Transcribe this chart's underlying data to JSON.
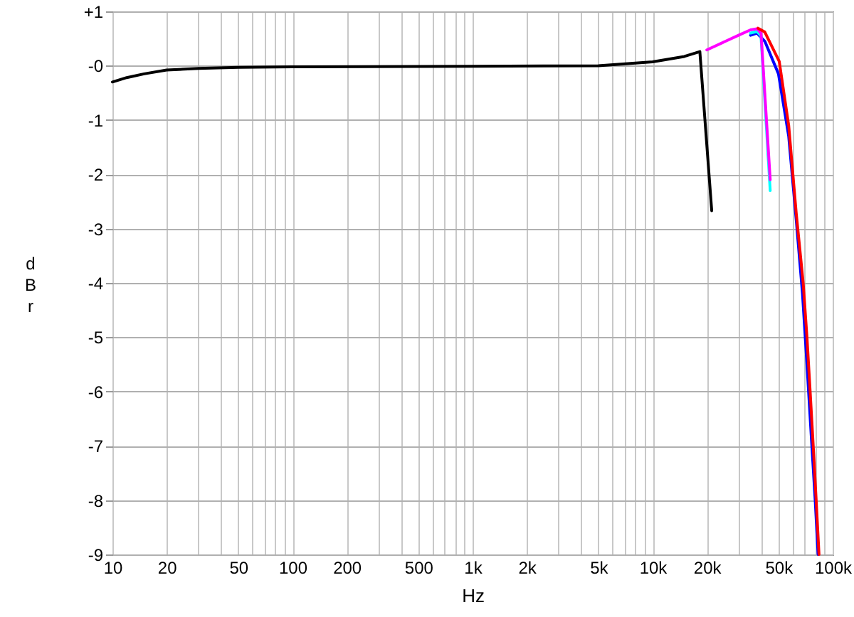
{
  "chart_data": {
    "type": "line",
    "xlabel": "Hz",
    "ylabel": "dBr",
    "log": "x",
    "grid": true,
    "line_style": "solid",
    "marker": "none",
    "xlim": [
      10,
      100000
    ],
    "ylim": [
      -9,
      1
    ],
    "xticks": [
      10,
      20,
      {
        "value": 30,
        "label": null
      },
      {
        "value": 40,
        "label": null
      },
      50,
      {
        "value": 60,
        "label": null
      },
      {
        "value": 70,
        "label": null
      },
      {
        "value": 80,
        "label": null
      },
      {
        "value": 90,
        "label": null
      },
      100,
      200,
      {
        "value": 300,
        "label": null
      },
      {
        "value": 400,
        "label": null
      },
      500,
      {
        "value": 600,
        "label": null
      },
      {
        "value": 700,
        "label": null
      },
      {
        "value": 800,
        "label": null
      },
      {
        "value": 900,
        "label": null
      },
      {
        "value": 1000,
        "label": "1k"
      },
      {
        "value": 2000,
        "label": "2k"
      },
      {
        "value": 3000,
        "label": null
      },
      {
        "value": 4000,
        "label": null
      },
      {
        "value": 5000,
        "label": "5k"
      },
      {
        "value": 6000,
        "label": null
      },
      {
        "value": 7000,
        "label": null
      },
      {
        "value": 8000,
        "label": null
      },
      {
        "value": 9000,
        "label": null
      },
      {
        "value": 10000,
        "label": "10k"
      },
      {
        "value": 20000,
        "label": "20k"
      },
      {
        "value": 30000,
        "label": null
      },
      {
        "value": 40000,
        "label": null
      },
      {
        "value": 50000,
        "label": "50k"
      },
      {
        "value": 60000,
        "label": null
      },
      {
        "value": 70000,
        "label": null
      },
      {
        "value": 80000,
        "label": null
      },
      {
        "value": 90000,
        "label": null
      },
      {
        "value": 100000,
        "label": "100k"
      }
    ],
    "yticks": [
      {
        "value": 1,
        "label": "+1"
      },
      {
        "value": 0,
        "label": "-0"
      },
      -1,
      -2,
      -3,
      -4,
      -5,
      -6,
      -7,
      -8,
      -9
    ],
    "series": [
      {
        "color": "#0000ff",
        "x": [
          35000,
          38000,
          42000,
          50000,
          57000,
          63000,
          68000,
          72000,
          76000,
          80000,
          83000
        ],
        "values": [
          0.56,
          0.6,
          0.45,
          -0.15,
          -1.3,
          -2.9,
          -4.2,
          -5.5,
          -6.8,
          -8,
          -9
        ]
      },
      {
        "color": "#00ffff",
        "x": [
          35000,
          38000,
          40000,
          45000
        ],
        "values": [
          0.6,
          0.63,
          0.55,
          -2.3
        ]
      },
      {
        "color": "#ff00ff",
        "x": [
          20000,
          30000,
          35000,
          38000,
          40000,
          45000
        ],
        "values": [
          0.29,
          0.56,
          0.66,
          0.68,
          0.6,
          -2.1
        ]
      },
      {
        "color": "#ff0000",
        "x": [
          38500,
          42000,
          50500,
          57000,
          62700,
          68600,
          72000,
          75000,
          78000,
          81000,
          84000
        ],
        "values": [
          0.69,
          0.62,
          0.08,
          -1.1,
          -2.7,
          -4,
          -5,
          -6,
          -7,
          -8,
          -9
        ]
      },
      {
        "color": "#000000",
        "x": [
          10,
          12,
          15,
          20,
          30,
          50,
          100,
          1000,
          5000,
          10000,
          15000,
          18300,
          21300
        ],
        "values": [
          -0.3,
          -0.22,
          -0.15,
          -0.08,
          -0.05,
          -0.03,
          -0.02,
          -0.01,
          0,
          0.07,
          0.17,
          0.26,
          -2.67
        ]
      }
    ]
  }
}
